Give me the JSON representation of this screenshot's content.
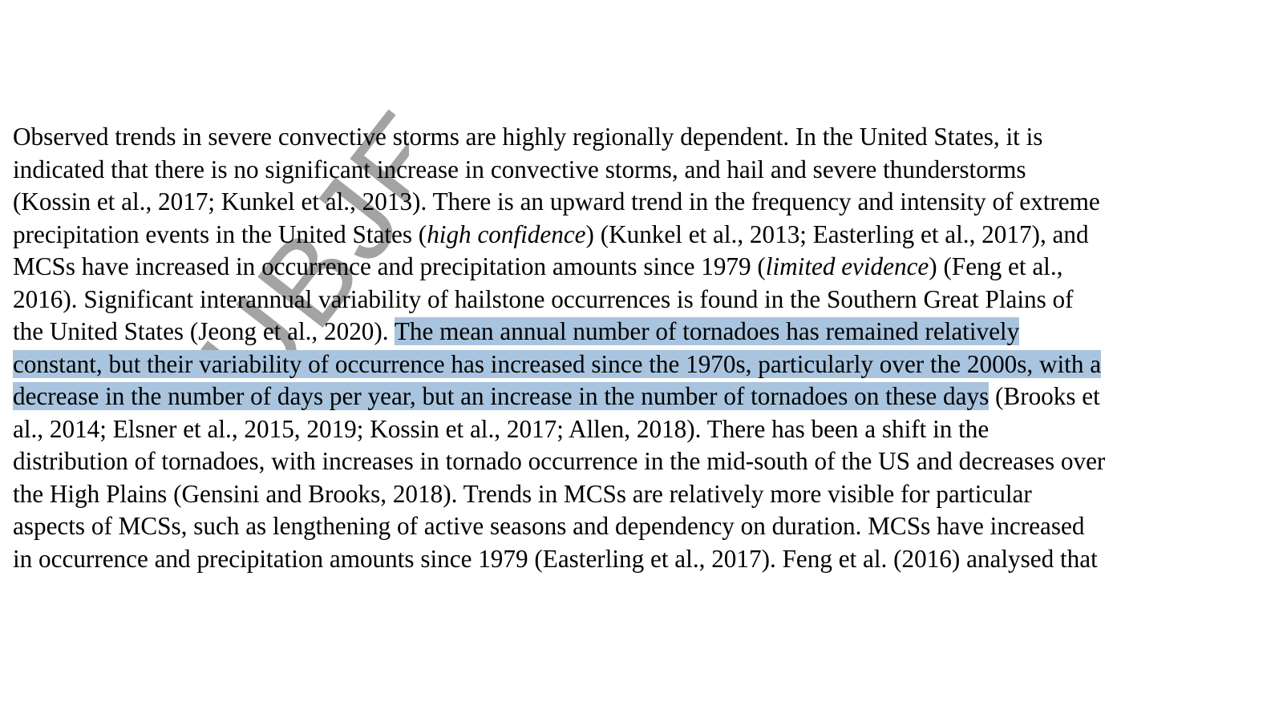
{
  "document": {
    "watermark": "SUBJE",
    "highlight_color": "#a9c4de",
    "lines": [
      {
        "a": "Observed trends in severe convective storms are highly regionally dependent. In the United States, it is"
      },
      {
        "a": "indicated that there is no significant increase in convective storms, and hail and severe thunderstorms"
      },
      {
        "a": "(Kossin et al., 2017; Kunkel et al., 2013). There is an upward trend in the frequency and intensity of extreme"
      },
      {
        "a": "precipitation events in the United States (",
        "i": "high confidence",
        "b": ") (Kunkel et al., 2013; Easterling et al., 2017), and"
      },
      {
        "a": "MCSs have increased in occurrence and precipitation amounts since 1979 (",
        "i": "limited evidence",
        "b": ") (Feng et al.,"
      },
      {
        "a": "2016).  Significant interannual variability of hailstone occurrences is found in the Southern Great Plains of"
      },
      {
        "a": "the United States (Jeong et al., 2020). ",
        "h": "The mean annual number of tornadoes has remained relatively "
      },
      {
        "h": "constant, but their variability of occurrence has increased since the 1970s, particularly over the 2000s, with a"
      },
      {
        "h": "decrease in the number of days per year, but an increase in the number of tornadoes on these days",
        "b": " (Brooks et"
      },
      {
        "a": "al., 2014; Elsner et al., 2015, 2019; Kossin et al., 2017; Allen, 2018). There has been a shift in the"
      },
      {
        "a": "distribution of tornadoes, with increases in tornado occurrence in the mid-south of the US and decreases over"
      },
      {
        "a": "the High Plains (Gensini and Brooks, 2018). Trends in MCSs are relatively more visible for particular"
      },
      {
        "a": "aspects of MCSs, such as lengthening of active seasons and dependency on duration. MCSs have increased"
      },
      {
        "a": "in occurrence and precipitation amounts since 1979 (Easterling et al., 2017). Feng et al. (2016) analysed that"
      }
    ]
  }
}
